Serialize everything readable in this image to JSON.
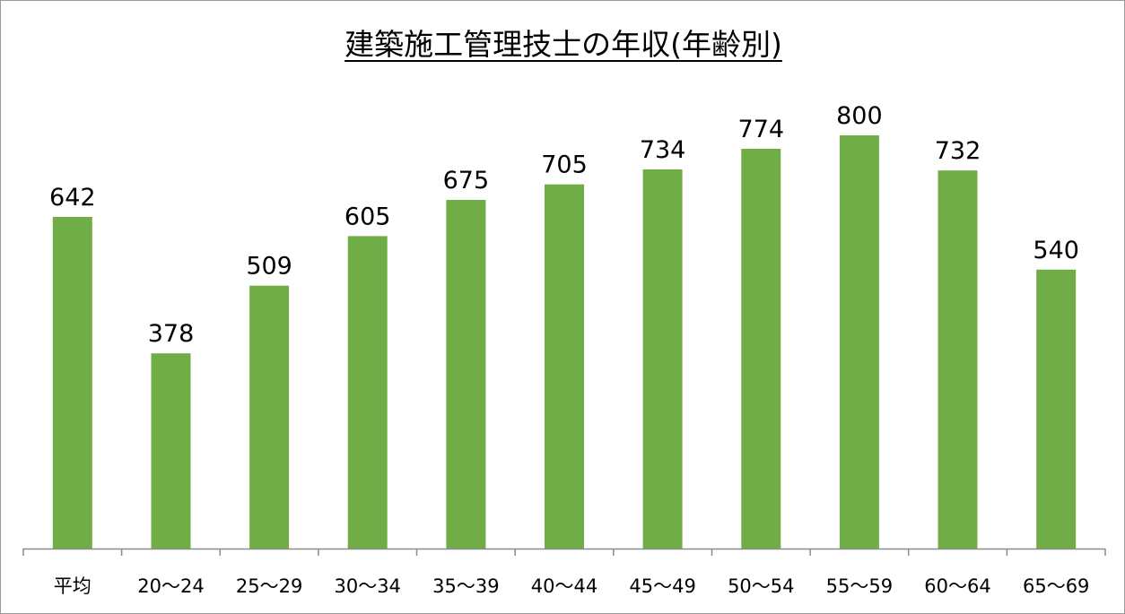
{
  "chart_data": {
    "type": "bar",
    "title": "建築施工管理技士の年収(年齢別)",
    "categories": [
      "平均",
      "20〜24",
      "25〜29",
      "30〜34",
      "35〜39",
      "40〜44",
      "45〜49",
      "50〜54",
      "55〜59",
      "60〜64",
      "65〜69"
    ],
    "values": [
      642,
      378,
      509,
      605,
      675,
      705,
      734,
      774,
      800,
      732,
      540
    ],
    "xlabel": "",
    "ylabel": "",
    "ylim": [
      0,
      900
    ],
    "grid": false,
    "legend": "none",
    "data_labels": true,
    "bar_color": "#70ad47",
    "axis_color": "#8c8c8c"
  }
}
